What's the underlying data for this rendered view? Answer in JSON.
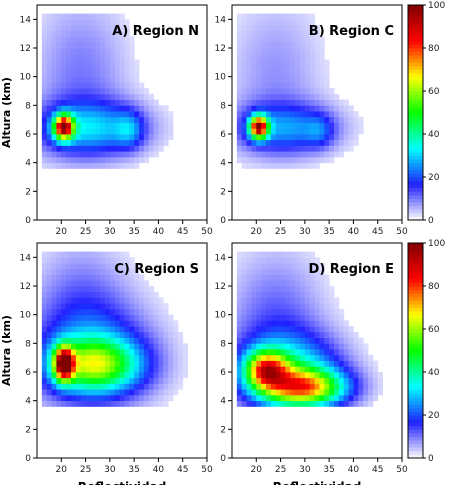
{
  "chart_data": {
    "type": "heatmap",
    "x_ticks": [
      20,
      25,
      30,
      35,
      40,
      45,
      50
    ],
    "y_ticks": [
      0,
      2,
      4,
      6,
      8,
      10,
      12,
      14
    ],
    "xlim": [
      15,
      50
    ],
    "ylim": [
      0,
      15
    ],
    "grid": false,
    "colormap": [
      "#ffffff",
      "#2020ff",
      "#00ffff",
      "#00ff00",
      "#ffff00",
      "#ff0000",
      "#800000"
    ],
    "colorbar": {
      "ticks": [
        0,
        20,
        40,
        60,
        80,
        100
      ],
      "range": [
        0,
        100
      ]
    },
    "panels": [
      {
        "id": "N",
        "title": "A) Region N",
        "ylabel": "Altura (km)",
        "xlabel": "",
        "components": [
          {
            "x": 20.5,
            "y": 6.5,
            "sx": 1.4,
            "sy": 0.6,
            "amp": 80
          },
          {
            "x": 26,
            "y": 6.4,
            "sx": 8,
            "sy": 1.3,
            "amp": 26
          },
          {
            "x": 34,
            "y": 6.3,
            "sx": 2,
            "sy": 0.9,
            "amp": 14
          },
          {
            "x": 24,
            "y": 10,
            "sx": 7,
            "sy": 4,
            "amp": 10
          }
        ]
      },
      {
        "id": "C",
        "title": "B) Region C",
        "ylabel": "",
        "xlabel": "",
        "components": [
          {
            "x": 20.5,
            "y": 6.5,
            "sx": 1.3,
            "sy": 0.55,
            "amp": 82
          },
          {
            "x": 26,
            "y": 6.4,
            "sx": 7.5,
            "sy": 1.2,
            "amp": 22
          },
          {
            "x": 33,
            "y": 6.2,
            "sx": 2,
            "sy": 0.8,
            "amp": 10
          },
          {
            "x": 24,
            "y": 10,
            "sx": 7,
            "sy": 4,
            "amp": 8
          }
        ]
      },
      {
        "id": "S",
        "title": "C) Region S",
        "ylabel": "Altura (km)",
        "xlabel": "Reflectividad",
        "components": [
          {
            "x": 20.5,
            "y": 6.6,
            "sx": 1.4,
            "sy": 0.8,
            "amp": 78
          },
          {
            "x": 27,
            "y": 6.5,
            "sx": 6.5,
            "sy": 1.3,
            "amp": 45
          },
          {
            "x": 27,
            "y": 7.2,
            "sx": 9,
            "sy": 2.6,
            "amp": 18
          },
          {
            "x": 24,
            "y": 10.5,
            "sx": 7,
            "sy": 3.5,
            "amp": 10
          }
        ]
      },
      {
        "id": "E",
        "title": "D) Region E",
        "ylabel": "",
        "xlabel": "Reflectividad",
        "components": [
          {
            "x": 22,
            "y": 6.2,
            "sx": 3,
            "sy": 0.9,
            "amp": 55
          },
          {
            "x": 30,
            "y": 4.9,
            "sx": 6,
            "sy": 0.9,
            "amp": 55
          },
          {
            "x": 27,
            "y": 6,
            "sx": 7.5,
            "sy": 1.8,
            "amp": 32
          },
          {
            "x": 24,
            "y": 9.5,
            "sx": 7,
            "sy": 3.5,
            "amp": 12
          }
        ]
      }
    ]
  }
}
